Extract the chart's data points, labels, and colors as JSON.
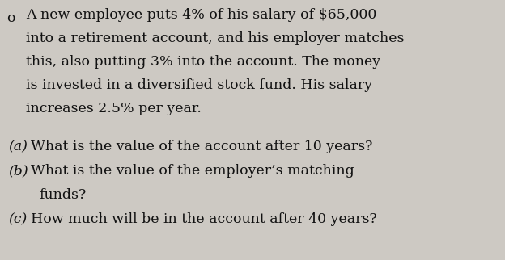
{
  "background_color": "#cdc9c3",
  "text_color": "#111111",
  "line1": "A new employee puts 4% of his salary of $65,000",
  "line2": "into a retirement account, and his employer matches",
  "line3": "this, also putting 3% into the account. The money",
  "line4": "is invested in a diversified stock fund. His salary",
  "line5": "increases 2.5% per year.",
  "qa_label": "(a)",
  "qa_text": "What is the value of the account after 10 years?",
  "qb_label": "(b)",
  "qb_text1": "What is the value of the employer’s matching",
  "qb_text2": "funds?",
  "qc_label": "(c)",
  "qc_text": "How much will be in the account after 40 years?",
  "font_size": 12.5,
  "fig_width": 6.24,
  "fig_height": 3.22,
  "dpi": 100
}
